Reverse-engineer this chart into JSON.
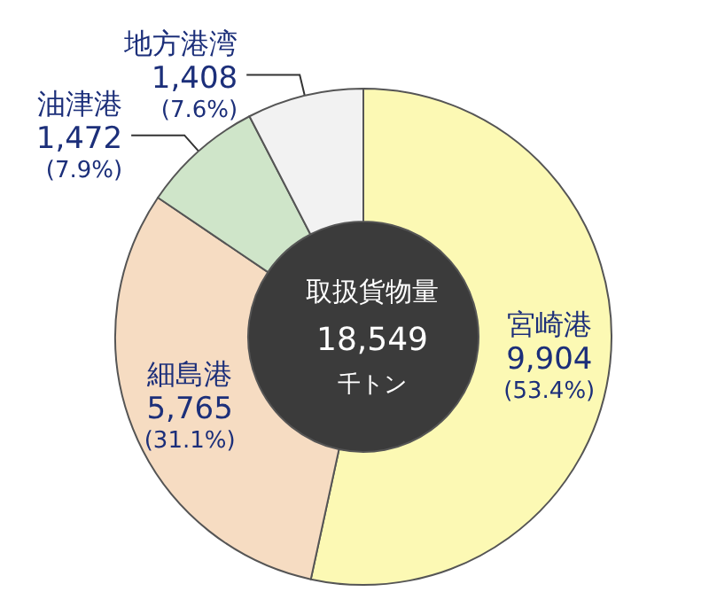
{
  "chart_data": {
    "type": "donut",
    "title": "取扱貨物量",
    "subtitle": "18,549",
    "annotations": [
      "千トン"
    ],
    "categories": [
      "宮崎港",
      "細島港",
      "油津港",
      "地方港湾"
    ],
    "values": [
      9904,
      5765,
      1472,
      1408
    ],
    "colors": [
      "#fcf9b4",
      "#f6dcc2",
      "#cfe5c9",
      "#f2f2f2"
    ],
    "value_labels": [
      "9,904 (53.4%)",
      "5,765 (31.1%)",
      "1,472 (7.9%)",
      "1,408 (7.6%)"
    ],
    "legend": false
  }
}
